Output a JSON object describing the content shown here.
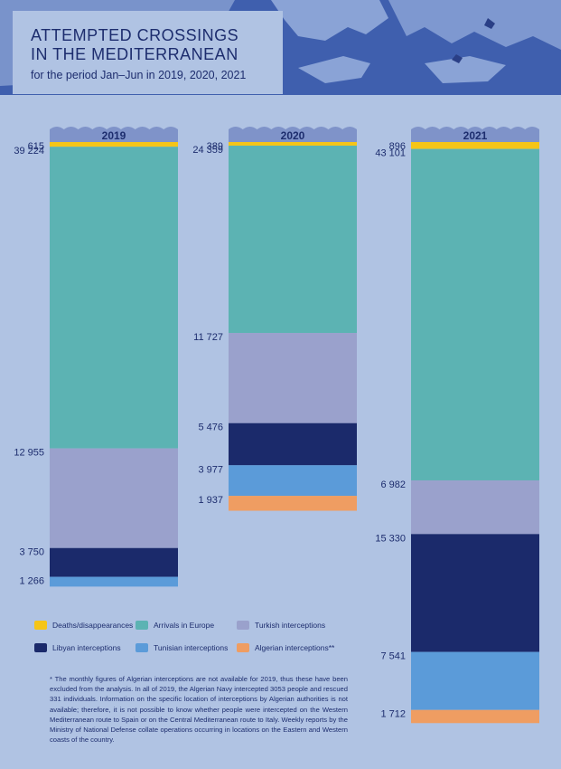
{
  "title_line1": "ATTEMPTED CROSSINGS",
  "title_line2": "IN THE MEDITERRANEAN",
  "subtitle": "for the period Jan–Jun in 2019, 2020, 2021",
  "colors": {
    "deaths": "#f5c518",
    "arrivals": "#5cb3b3",
    "turkish": "#9aa1cc",
    "libyan": "#1b2a6b",
    "tunisian": "#5b9bd9",
    "algerian": "#ef9d62"
  },
  "legend": [
    {
      "key": "deaths",
      "label": "Deaths/disappearances"
    },
    {
      "key": "arrivals",
      "label": "Arrivals in Europe"
    },
    {
      "key": "turkish",
      "label": "Turkish interceptions"
    },
    {
      "key": "libyan",
      "label": "Libyan interceptions"
    },
    {
      "key": "tunisian",
      "label": "Tunisian interceptions"
    },
    {
      "key": "algerian",
      "label": "Algerian interceptions**"
    }
  ],
  "chart_data": {
    "type": "bar",
    "stacked": true,
    "categories": [
      "2019",
      "2020",
      "2021"
    ],
    "series": [
      {
        "name": "Deaths/disappearances",
        "key": "deaths",
        "values": [
          615,
          389,
          896
        ],
        "labels": [
          "615",
          "389",
          "896"
        ]
      },
      {
        "name": "Arrivals in Europe",
        "key": "arrivals",
        "values": [
          39224,
          24359,
          43101
        ],
        "labels": [
          "39 224",
          "24 359",
          "43 101"
        ]
      },
      {
        "name": "Turkish interceptions",
        "key": "turkish",
        "values": [
          12955,
          11727,
          6982
        ],
        "labels": [
          "12 955",
          "11 727",
          "6 982"
        ]
      },
      {
        "name": "Libyan interceptions",
        "key": "libyan",
        "values": [
          3750,
          5476,
          15330
        ],
        "labels": [
          "3 750",
          "5 476",
          "15 330"
        ]
      },
      {
        "name": "Tunisian interceptions",
        "key": "tunisian",
        "values": [
          1266,
          3977,
          7541
        ],
        "labels": [
          "1 266",
          "3 977",
          "7 541"
        ]
      },
      {
        "name": "Algerian interceptions**",
        "key": "algerian",
        "values": [
          null,
          1937,
          1712
        ],
        "labels": [
          "",
          "1 937",
          "1 712"
        ]
      }
    ]
  },
  "footnote": "* The monthly figures of Algerian interceptions are not available for 2019, thus these have been excluded from the analysis. In all of 2019, the Algerian Navy intercepted 3053 people and rescued 331 individuals. Information on the specific location of interceptions by Algerian authorities is not available; therefore, it is not possible to know whether people were intercepted on the Western Mediterranean route to Spain or on the Central Mediterranean route to Italy. Weekly reports by the Ministry of National Defense collate operations occurring in locations on the Eastern and Western coasts of the country."
}
